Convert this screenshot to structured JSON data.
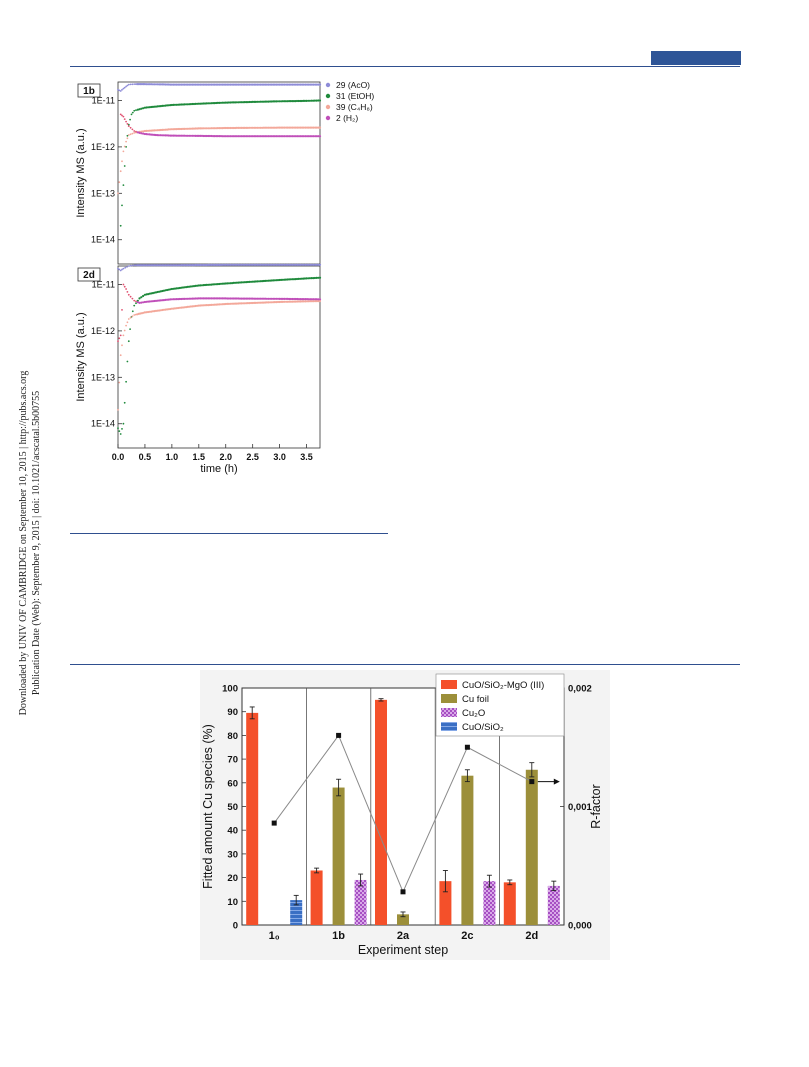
{
  "side_note": {
    "line1": "Downloaded by UNIV OF CAMBRIDGE on September 10, 2015 | http://pubs.acs.org",
    "line2": "Publication Date (Web): September 9, 2015 | doi: 10.1021/acscatal.5b00755"
  },
  "colors": {
    "AcO": "#8e8cd8",
    "EtOH": "#1f8a3c",
    "C4H8": "#f3a89a",
    "H2": "#c04fb9",
    "H2_dots": "#e05070",
    "bar_CuO_SiO2_MgO": "#f4502a",
    "bar_Cu_foil": "#9c8f3a",
    "bar_Cu2O": "#a64fc3",
    "bar_CuO_SiO2": "#3a6fc4",
    "rule": "#2f4f8f"
  },
  "chart_data": [
    {
      "type": "line",
      "panels": [
        "1b",
        "2d"
      ],
      "ylabel": "Intensity MS (a.u.)",
      "xlabel": "time (h)",
      "xlim": [
        0.0,
        3.75
      ],
      "xticks": [
        "0.0",
        "0.5",
        "1.0",
        "1.5",
        "2.0",
        "2.5",
        "3.0",
        "3.5"
      ],
      "yscale": "log",
      "ylim": [
        3e-15,
        2.5e-11
      ],
      "yticks": [
        "1E-14",
        "1E-13",
        "1E-12",
        "1E-11"
      ],
      "legend": {
        "position": "top-right",
        "entries": [
          {
            "label": "29 (AcO)",
            "key": "AcO"
          },
          {
            "label": "31 (EtOH)",
            "key": "EtOH"
          },
          {
            "label": "39 (C₄H₈)",
            "key": "C4H8"
          },
          {
            "label": "2 (H₂)",
            "key": "H2"
          }
        ]
      },
      "series_1b": {
        "AcO": {
          "x": [
            0,
            0.05,
            0.1,
            0.15,
            0.2,
            0.3,
            0.5,
            1,
            2,
            3,
            3.75
          ],
          "y": [
            1.7e-11,
            1.6e-11,
            1.8e-11,
            2e-11,
            2.2e-11,
            2.25e-11,
            2.25e-11,
            2.2e-11,
            2.2e-11,
            2.2e-11,
            2.2e-11
          ]
        },
        "EtOH": {
          "x": [
            0.05,
            0.1,
            0.15,
            0.2,
            0.25,
            0.3,
            0.4,
            0.5,
            1,
            1.5,
            2,
            2.5,
            3,
            3.5,
            3.75
          ],
          "y": [
            2e-14,
            1.5e-13,
            1e-12,
            3e-12,
            5e-12,
            6e-12,
            6.5e-12,
            7e-12,
            8e-12,
            8.5e-12,
            9e-12,
            9.3e-12,
            9.6e-12,
            9.8e-12,
            1e-11
          ]
        },
        "C4H8": {
          "x": [
            0,
            0.05,
            0.1,
            0.15,
            0.2,
            0.3,
            0.4,
            0.5,
            1,
            1.5,
            2,
            3,
            3.75
          ],
          "y": [
            1e-13,
            3e-13,
            8e-13,
            1.3e-12,
            1.8e-12,
            2e-12,
            2.1e-12,
            2.2e-12,
            2.4e-12,
            2.5e-12,
            2.55e-12,
            2.6e-12,
            2.6e-12
          ]
        },
        "H2": {
          "x": [
            0.05,
            0.1,
            0.15,
            0.2,
            0.3,
            0.4,
            0.5,
            0.7,
            1,
            2,
            3,
            3.75
          ],
          "y": [
            5e-12,
            4.5e-12,
            3.5e-12,
            2.8e-12,
            2.2e-12,
            2e-12,
            1.9e-12,
            1.8e-12,
            1.75e-12,
            1.7e-12,
            1.7e-12,
            1.7e-12
          ]
        }
      },
      "series_2d": {
        "AcO": {
          "x": [
            0,
            0.05,
            0.1,
            0.2,
            0.3,
            0.5,
            1,
            2,
            3,
            3.75
          ],
          "y": [
            2.2e-11,
            2e-11,
            2.2e-11,
            2.5e-11,
            2.6e-11,
            2.6e-11,
            2.6e-11,
            2.65e-11,
            2.65e-11,
            2.65e-11
          ]
        },
        "EtOH": {
          "x": [
            0,
            0.05,
            0.1,
            0.15,
            0.2,
            0.25,
            0.3,
            0.4,
            0.5,
            1,
            1.5,
            2,
            2.5,
            3,
            3.5,
            3.75
          ],
          "y": [
            8e-15,
            6e-15,
            1e-14,
            8e-14,
            6e-13,
            2e-12,
            3.5e-12,
            5e-12,
            6e-12,
            8e-12,
            9.5e-12,
            1.05e-11,
            1.15e-11,
            1.25e-11,
            1.35e-11,
            1.4e-11
          ]
        },
        "C4H8": {
          "x": [
            0,
            0.05,
            0.1,
            0.15,
            0.2,
            0.3,
            0.5,
            1,
            1.5,
            2,
            3,
            3.75
          ],
          "y": [
            2e-14,
            3e-13,
            8e-13,
            1.3e-12,
            1.8e-12,
            2.2e-12,
            2.5e-12,
            3e-12,
            3.5e-12,
            3.8e-12,
            4.2e-12,
            4.4e-12
          ]
        },
        "H2": {
          "x": [
            0,
            0.05,
            0.1,
            0.15,
            0.2,
            0.3,
            0.4,
            0.5,
            1,
            1.5,
            2,
            3,
            3.75
          ],
          "y": [
            6e-13,
            8e-13,
            1e-11,
            8e-12,
            6e-12,
            4.5e-12,
            4e-12,
            4.2e-12,
            4.8e-12,
            5e-12,
            5e-12,
            4.9e-12,
            4.8e-12
          ]
        }
      }
    },
    {
      "type": "bar",
      "categories": [
        "1₀",
        "1b",
        "2a",
        "2c",
        "2d"
      ],
      "xlabel": "Experiment step",
      "ylabel": "Fitted amount Cu species (%)",
      "ylabel_right": "R-factor",
      "ylim": [
        0,
        100
      ],
      "yticks": [
        "0",
        "10",
        "20",
        "30",
        "40",
        "50",
        "60",
        "70",
        "80",
        "90",
        "100"
      ],
      "ylim_right": [
        0,
        0.002
      ],
      "yticks_right": [
        "0,000",
        "0,001",
        "0,002"
      ],
      "legend": {
        "position": "top-right",
        "entries": [
          {
            "label": "CuO/SiO₂-MgO (III)",
            "key": "bar_CuO_SiO2_MgO"
          },
          {
            "label": "Cu foil",
            "key": "bar_Cu_foil"
          },
          {
            "label": "Cu₂O",
            "key": "bar_Cu2O"
          },
          {
            "label": "CuO/SiO₂",
            "key": "bar_CuO_SiO2"
          }
        ]
      },
      "series": [
        {
          "name": "CuO/SiO₂-MgO (III)",
          "values": [
            89.5,
            23,
            95,
            18.5,
            18
          ],
          "errors": [
            2.5,
            1,
            0.5,
            4.5,
            1
          ]
        },
        {
          "name": "Cu foil",
          "values": [
            0,
            58,
            4.5,
            63,
            65.5
          ],
          "errors": [
            0,
            3.5,
            1,
            2.5,
            3
          ]
        },
        {
          "name": "Cu₂O",
          "values": [
            0,
            19,
            0,
            18.5,
            16.5
          ],
          "errors": [
            0,
            2.5,
            0,
            2.5,
            2
          ]
        },
        {
          "name": "CuO/SiO₂",
          "values": [
            10.5,
            0,
            0,
            0,
            0
          ],
          "errors": [
            2,
            0,
            0,
            0,
            0
          ]
        }
      ],
      "r_factor": {
        "values": [
          0.00086,
          0.0016,
          0.00028,
          0.0015,
          0.00121
        ]
      },
      "annotation_arrow": "→"
    }
  ]
}
